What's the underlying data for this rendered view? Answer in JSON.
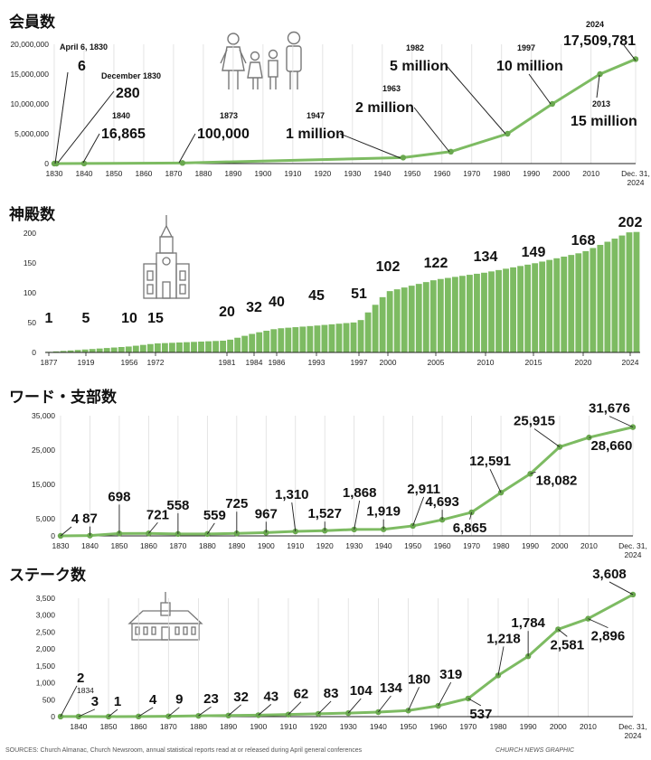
{
  "footer": {
    "sources": "SOURCES: Church Almanac, Church Newsroom, annual statistical reports read at or released during April general conferences",
    "credit": "CHURCH NEWS GRAPHIC"
  },
  "colors": {
    "line": "#7dbb62",
    "bar": "#7dbb62",
    "point": "#6aa84f",
    "grid": "#dddddd",
    "axis": "#222222"
  },
  "chart_data": [
    {
      "type": "line",
      "title": "会員数",
      "x": [
        1830,
        1830.75,
        1840,
        1873,
        1947,
        1963,
        1982,
        1997,
        2013,
        2024.95
      ],
      "values": [
        6,
        280,
        16865,
        100000,
        1000000,
        2000000,
        5000000,
        10000000,
        15000000,
        17509781
      ],
      "xlim": [
        1830,
        2024.95
      ],
      "ylim": [
        0,
        20000000
      ],
      "yticks": [
        "0",
        "5,000,000",
        "10,000,000",
        "15,000,000",
        "20,000,000"
      ],
      "xticks": [
        "1830",
        "1840",
        "1850",
        "1860",
        "1870",
        "1880",
        "1890",
        "1900",
        "1910",
        "1920",
        "1930",
        "1940",
        "1950",
        "1960",
        "1970",
        "1980",
        "1990",
        "2000",
        "2010"
      ],
      "end_label": [
        "Dec. 31,",
        "2024"
      ],
      "annotations": [
        {
          "year": "April 6, 1830",
          "value": "6"
        },
        {
          "year": "December 1830",
          "value": "280"
        },
        {
          "year": "1840",
          "value": "16,865"
        },
        {
          "year": "1873",
          "value": "100,000"
        },
        {
          "year": "1947",
          "value": "1 million"
        },
        {
          "year": "1963",
          "value": "2 million"
        },
        {
          "year": "1982",
          "value": "5 million"
        },
        {
          "year": "1997",
          "value": "10 million"
        },
        {
          "year": "2013",
          "value": "15 million"
        },
        {
          "year": "2024",
          "value": "17,509,781"
        }
      ]
    },
    {
      "type": "bar",
      "title": "神殿数",
      "categories": [
        "1877",
        "1919",
        "1956",
        "1972",
        "1981",
        "1984",
        "1986",
        "1993",
        "1997",
        "2000",
        "2005",
        "2010",
        "2015",
        "2020",
        "2024"
      ],
      "labels": [
        "1",
        "5",
        "10",
        "15",
        "20",
        "32",
        "40",
        "45",
        "51",
        "102",
        "122",
        "134",
        "149",
        "168",
        "202"
      ],
      "values": [
        1,
        5,
        10,
        15,
        20,
        32,
        40,
        45,
        51,
        102,
        122,
        134,
        149,
        168,
        202
      ],
      "ylim": [
        0,
        200
      ],
      "yticks": [
        "0",
        "50",
        "100",
        "150",
        "200"
      ],
      "xticks": [
        "1877",
        "1919",
        "1956",
        "1972",
        "1981",
        "1984",
        "1986",
        "1993",
        "1997",
        "2000",
        "2005",
        "2010",
        "2015",
        "2020",
        "2024"
      ]
    },
    {
      "type": "line",
      "title": "ワード・支部数",
      "x": [
        1830,
        1840,
        1850,
        1860,
        1870,
        1880,
        1890,
        1900,
        1910,
        1920,
        1930,
        1940,
        1950,
        1960,
        1970,
        1980,
        1990,
        2000,
        2010,
        2024.95
      ],
      "values": [
        4,
        87,
        698,
        721,
        558,
        559,
        725,
        967,
        1310,
        1527,
        1868,
        1919,
        2911,
        4693,
        6865,
        12591,
        18082,
        25915,
        28660,
        31676
      ],
      "labels": [
        "4",
        "87",
        "698",
        "721",
        "558",
        "559",
        "725",
        "967",
        "1,310",
        "1,527",
        "1,868",
        "1,919",
        "2,911",
        "4,693",
        "6,865",
        "12,591",
        "18,082",
        "25,915",
        "28,660",
        "31,676"
      ],
      "xlim": [
        1830,
        2024.95
      ],
      "ylim": [
        0,
        35000
      ],
      "yticks": [
        "0",
        "5,000",
        "15,000",
        "25,000",
        "35,000"
      ],
      "xticks": [
        "1830",
        "1840",
        "1850",
        "1860",
        "1870",
        "1880",
        "1890",
        "1900",
        "1910",
        "1920",
        "1930",
        "1940",
        "1950",
        "1960",
        "1970",
        "1980",
        "1990",
        "2000",
        "2010"
      ],
      "end_label": [
        "Dec. 31,",
        "2024"
      ]
    },
    {
      "type": "line",
      "title": "ステーク数",
      "x": [
        1834,
        1840,
        1850,
        1860,
        1870,
        1880,
        1890,
        1900,
        1910,
        1920,
        1930,
        1940,
        1950,
        1960,
        1970,
        1980,
        1990,
        2000,
        2010,
        2024.95
      ],
      "values": [
        2,
        3,
        1,
        4,
        9,
        23,
        32,
        43,
        62,
        83,
        104,
        134,
        180,
        319,
        537,
        1218,
        1784,
        2581,
        2896,
        3608
      ],
      "labels": [
        "2",
        "3",
        "1",
        "4",
        "9",
        "23",
        "32",
        "43",
        "62",
        "83",
        "104",
        "134",
        "180",
        "319",
        "537",
        "1,218",
        "1,784",
        "2,581",
        "2,896",
        "3,608"
      ],
      "first_year": "1834",
      "xlim": [
        1834,
        2024.95
      ],
      "ylim": [
        0,
        3500
      ],
      "yticks": [
        "0",
        "500",
        "1,000",
        "1,500",
        "2,000",
        "2,500",
        "3,000",
        "3,500"
      ],
      "xticks": [
        "1840",
        "1850",
        "1860",
        "1870",
        "1880",
        "1890",
        "1900",
        "1910",
        "1920",
        "1930",
        "1940",
        "1950",
        "1960",
        "1970",
        "1980",
        "1990",
        "2000",
        "2010"
      ],
      "end_label": [
        "Dec. 31,",
        "2024"
      ]
    }
  ]
}
